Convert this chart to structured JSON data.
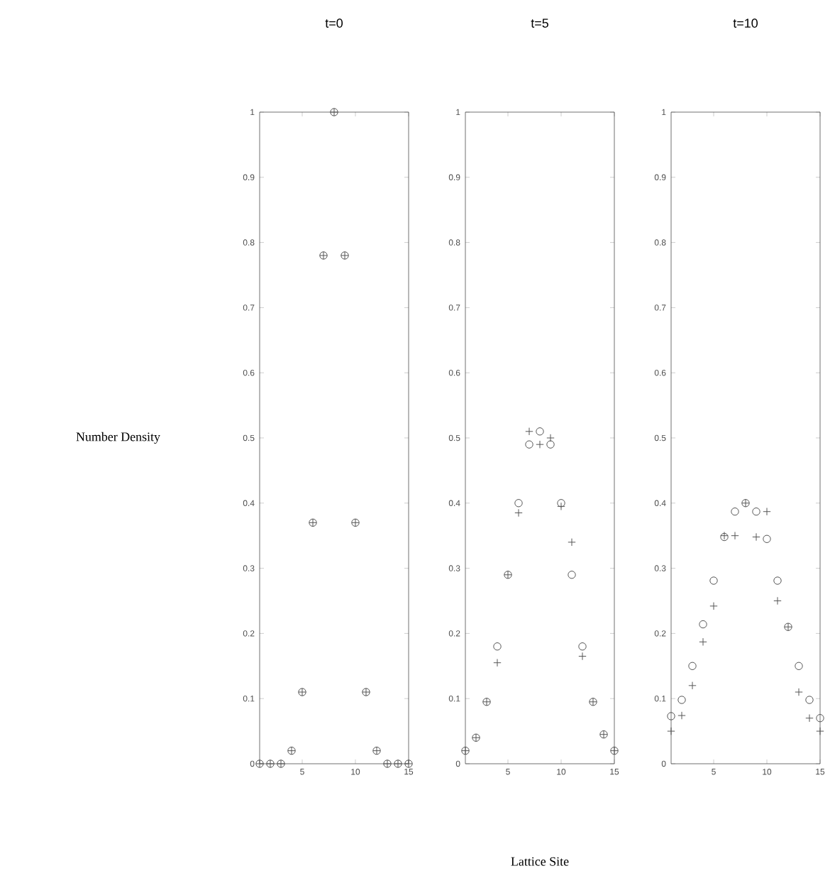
{
  "chart_data": [
    {
      "type": "scatter",
      "title": "t=0",
      "ylabel": "Number Density",
      "x": [
        1,
        2,
        3,
        4,
        5,
        6,
        7,
        8,
        9,
        10,
        11,
        12,
        13,
        14,
        15
      ],
      "xlim": [
        1,
        15
      ],
      "xticks": [
        5,
        10,
        15
      ],
      "ylim": [
        0,
        1
      ],
      "yticks": [
        0,
        0.1,
        0.2,
        0.3,
        0.4,
        0.5,
        0.6,
        0.7,
        0.8,
        0.9,
        1
      ],
      "series": [
        {
          "color": "#555555",
          "marker": "circle",
          "values": [
            0,
            0,
            0,
            0.02,
            0.11,
            0.37,
            0.78,
            1.0,
            0.78,
            0.37,
            0.11,
            0.02,
            0,
            0,
            0
          ]
        },
        {
          "color": "#555555",
          "marker": "cross",
          "values": [
            0,
            0,
            0,
            0.02,
            0.11,
            0.37,
            0.78,
            1.0,
            0.78,
            0.37,
            0.11,
            0.02,
            0,
            0,
            0
          ]
        }
      ]
    },
    {
      "type": "scatter",
      "title": "t=5",
      "xlabel": "Lattice Site",
      "x": [
        1,
        2,
        3,
        4,
        5,
        6,
        7,
        8,
        9,
        10,
        11,
        12,
        13,
        14,
        15
      ],
      "xlim": [
        1,
        15
      ],
      "xticks": [
        5,
        10,
        15
      ],
      "ylim": [
        0,
        1
      ],
      "yticks": [
        0,
        0.1,
        0.2,
        0.3,
        0.4,
        0.5,
        0.6,
        0.7,
        0.8,
        0.9,
        1
      ],
      "series": [
        {
          "color": "#555555",
          "marker": "circle",
          "values": [
            0.02,
            0.04,
            0.095,
            0.18,
            0.29,
            0.4,
            0.49,
            0.51,
            0.49,
            0.4,
            0.29,
            0.18,
            0.095,
            0.045,
            0.02
          ]
        },
        {
          "color": "#555555",
          "marker": "cross",
          "values": [
            0.02,
            0.04,
            0.095,
            0.155,
            0.29,
            0.385,
            0.51,
            0.49,
            0.5,
            0.395,
            0.34,
            0.165,
            0.095,
            0.045,
            0.02
          ]
        }
      ]
    },
    {
      "type": "scatter",
      "title": "t=10",
      "x": [
        1,
        2,
        3,
        4,
        5,
        6,
        7,
        8,
        9,
        10,
        11,
        12,
        13,
        14,
        15
      ],
      "xlim": [
        1,
        15
      ],
      "xticks": [
        5,
        10,
        15
      ],
      "ylim": [
        0,
        1
      ],
      "yticks": [
        0,
        0.1,
        0.2,
        0.3,
        0.4,
        0.5,
        0.6,
        0.7,
        0.8,
        0.9,
        1
      ],
      "series": [
        {
          "color": "#555555",
          "marker": "circle",
          "values": [
            0.073,
            0.098,
            0.15,
            0.214,
            0.281,
            0.348,
            0.387,
            0.4,
            0.387,
            0.345,
            0.281,
            0.21,
            0.15,
            0.098,
            0.07
          ]
        },
        {
          "color": "#555555",
          "marker": "cross",
          "values": [
            0.05,
            0.074,
            0.12,
            0.187,
            0.242,
            0.35,
            0.35,
            0.4,
            0.348,
            0.387,
            0.25,
            0.21,
            0.11,
            0.07,
            0.05
          ]
        }
      ]
    }
  ]
}
